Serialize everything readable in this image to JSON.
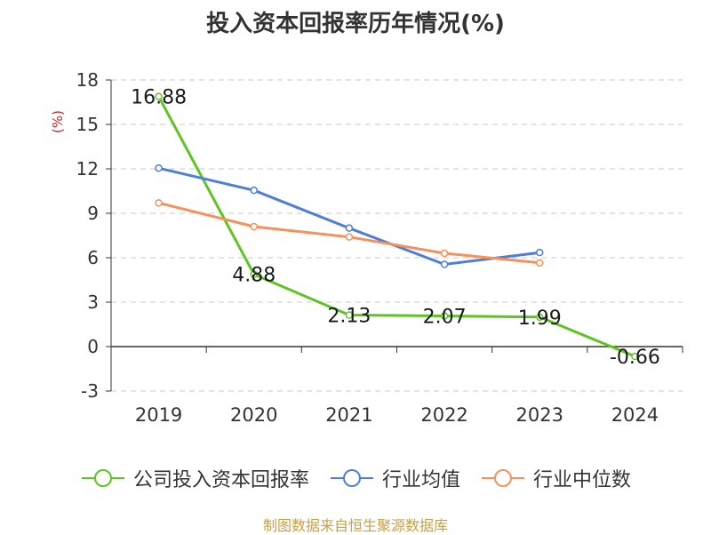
{
  "chart_data": {
    "type": "line",
    "title": "投入资本回报率历年情况(%)",
    "ylabel": "(%)",
    "xlabel": "",
    "categories": [
      "2019",
      "2020",
      "2021",
      "2022",
      "2023",
      "2024"
    ],
    "ylim": [
      -3,
      18
    ],
    "yticks": [
      -3,
      0,
      3,
      6,
      9,
      12,
      15,
      18
    ],
    "series": [
      {
        "name": "公司投入资本回报率",
        "color": "#5ec424",
        "values": [
          16.88,
          4.88,
          2.13,
          2.07,
          1.99,
          -0.66
        ],
        "labels": [
          "16.88",
          "4.88",
          "2.13",
          "2.07",
          "1.99",
          "-0.66"
        ]
      },
      {
        "name": "行业均值",
        "color": "#4e7fd8",
        "values": [
          12.05,
          10.55,
          8.0,
          5.55,
          6.35,
          null
        ]
      },
      {
        "name": "行业中位数",
        "color": "#f5915c",
        "values": [
          9.7,
          8.1,
          7.4,
          6.3,
          5.65,
          null
        ]
      }
    ],
    "source": "制图数据来自恒生聚源数据库"
  }
}
